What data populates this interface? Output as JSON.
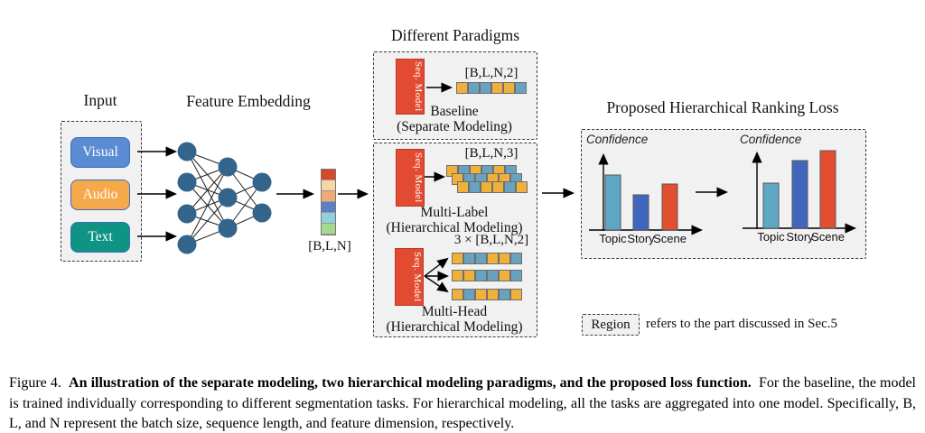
{
  "figure": {
    "input": {
      "title": "Input",
      "items": [
        {
          "label": "Visual",
          "color": "#5a8bd3"
        },
        {
          "label": "Audio",
          "color": "#f5a94b"
        },
        {
          "label": "Text",
          "color": "#0e9384"
        }
      ]
    },
    "feature_embedding": {
      "title": "Feature Embedding"
    },
    "feature_vector": {
      "label": "[B,L,N]",
      "cells": [
        "#d9462e",
        "#f6d7a2",
        "#f0a978",
        "#5b80c4",
        "#92d1dc",
        "#a5da8e"
      ]
    },
    "paradigms": {
      "title": "Different Paradigms",
      "seq_model_label": "Seq. Model",
      "square_colors": {
        "Y": "#efb13b",
        "B": "#68a2be"
      },
      "baseline": {
        "shape_label": "[B,L,N,2]",
        "name": "Baseline",
        "subname": "(Separate Modeling)",
        "squares": [
          "Y",
          "B",
          "B",
          "Y",
          "Y",
          "B"
        ]
      },
      "multi_label": {
        "shape_label": "[B,L,N,3]",
        "name": "Multi-Label",
        "subname": "(Hierarchical Modeling)",
        "rows": [
          [
            "Y",
            "B",
            "Y",
            "B",
            "Y",
            "B"
          ],
          [
            "Y",
            "B",
            "B",
            "Y",
            "Y",
            "B"
          ],
          [
            "Y",
            "B",
            "Y",
            "Y",
            "B",
            "Y"
          ]
        ]
      },
      "multi_head": {
        "shape_label": "3 × [B,L,N,2]",
        "name": "Multi-Head",
        "subname": "(Hierarchical Modeling)",
        "rows": [
          [
            "Y",
            "B",
            "B",
            "Y",
            "Y",
            "B"
          ],
          [
            "Y",
            "Y",
            "B",
            "B",
            "Y",
            "B"
          ],
          [
            "Y",
            "B",
            "Y",
            "Y",
            "B",
            "Y"
          ]
        ]
      }
    },
    "ranking_loss": {
      "title": "Proposed Hierarchical Ranking Loss"
    },
    "legend": {
      "box_label": "Region",
      "text": "refers to the part discussed in Sec.5"
    }
  },
  "chart_data": [
    {
      "type": "bar",
      "categories": [
        "Topic",
        "Story",
        "Scene"
      ],
      "values": [
        0.69,
        0.44,
        0.58
      ],
      "colors": [
        "#5fa8c5",
        "#4166be",
        "#e34e31"
      ],
      "title": "",
      "xlabel": "",
      "ylabel": "Confidence",
      "ylim": [
        0,
        1
      ],
      "grid": false,
      "legend_position": "none"
    },
    {
      "type": "bar",
      "categories": [
        "Topic",
        "Story",
        "Scene"
      ],
      "values": [
        0.54,
        0.81,
        0.94
      ],
      "colors": [
        "#5fa8c5",
        "#4166be",
        "#e34e31"
      ],
      "title": "",
      "xlabel": "",
      "ylabel": "Confidence",
      "ylim": [
        0,
        1
      ],
      "grid": false,
      "legend_position": "none"
    }
  ],
  "caption": {
    "prefix": "Figure 4.",
    "bold": "An illustration of the separate modeling, two hierarchical modeling paradigms, and the proposed loss function.",
    "rest": "For the baseline, the model is trained individually corresponding to different segmentation tasks. For hierarchical modeling, all the tasks are aggregated into one model. Specifically, B, L, and N represent the batch size, sequence length, and feature dimension, respectively."
  }
}
